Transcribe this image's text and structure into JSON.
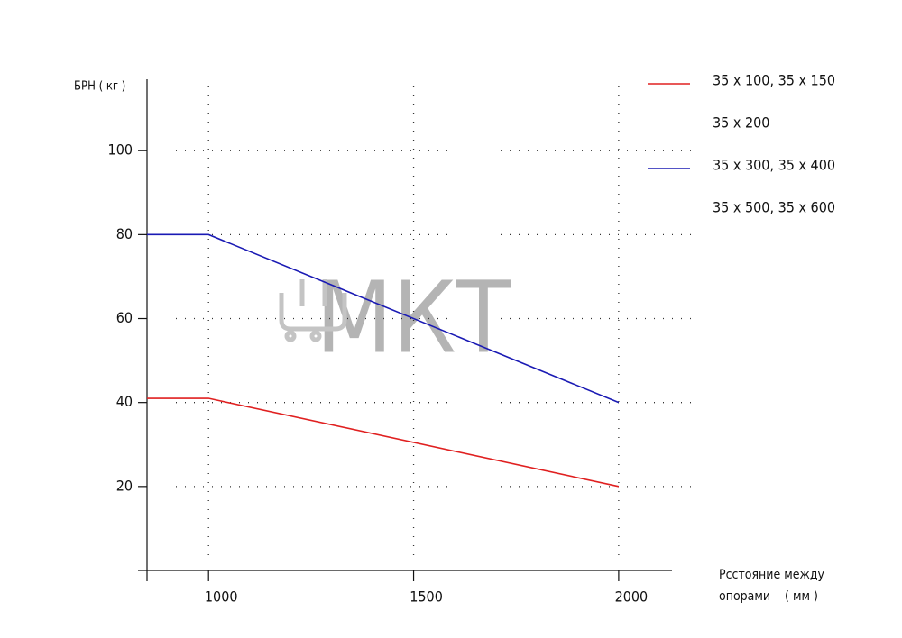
{
  "chart_data": {
    "type": "line",
    "y_label": "БРН ( кг )",
    "x_label": [
      "Рсстояние между",
      "опорами    ( мм )"
    ],
    "watermark": "МКТ",
    "x": [
      850,
      1000,
      2000
    ],
    "series": [
      {
        "name": "35 x 100, 35 x 150",
        "color": "#e02020",
        "values": [
          41,
          41,
          20
        ]
      },
      {
        "name": "35 x 300, 35 x 400",
        "color": "#1a1ab4",
        "values": [
          80,
          80,
          40
        ]
      }
    ],
    "legend_text": [
      "35 x 200",
      "35 x 500, 35 x 600"
    ],
    "xlim": [
      850,
      2130
    ],
    "ylim": [
      0,
      117
    ],
    "xticks": [
      1000,
      1500,
      2000
    ],
    "yticks": [
      20,
      40,
      60,
      80,
      100
    ],
    "grid": true
  }
}
